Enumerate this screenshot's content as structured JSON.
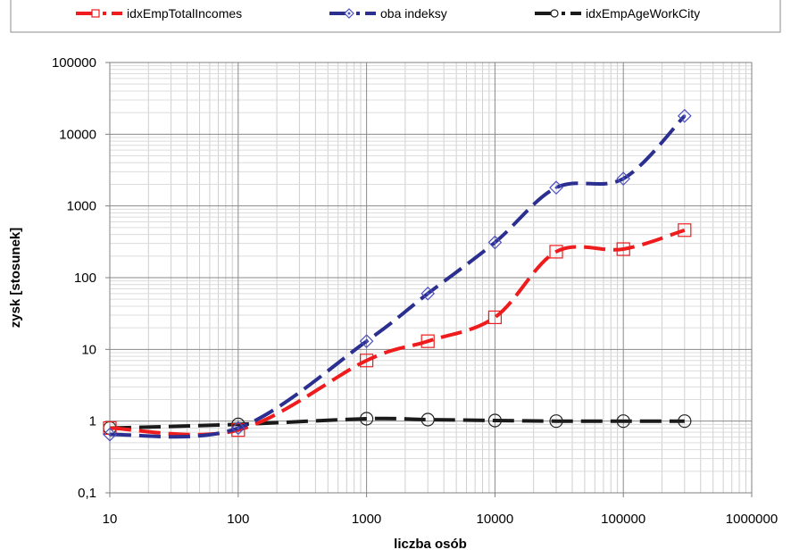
{
  "chart_data": {
    "type": "line",
    "xlabel": "liczba osób",
    "ylabel": "zysk [stosunek]",
    "x_scale": "log",
    "y_scale": "log",
    "xlim": [
      10,
      1000000
    ],
    "ylim": [
      0.1,
      100000
    ],
    "x_ticks": [
      10,
      100,
      1000,
      10000,
      100000,
      1000000
    ],
    "x_tick_labels": [
      "10",
      "100",
      "1000",
      "10000",
      "100000",
      "1000000"
    ],
    "y_ticks": [
      0.1,
      1,
      10,
      100,
      1000,
      10000,
      100000
    ],
    "y_tick_labels": [
      "0,1",
      "1",
      "10",
      "100",
      "1000",
      "10000",
      "100000"
    ],
    "grid": true,
    "legend_position": "top",
    "series": [
      {
        "name": "idxEmpTotalIncomes",
        "color": "#ee1c1c",
        "marker": "square",
        "x": [
          10,
          100,
          1000,
          3000,
          10000,
          30000,
          100000,
          300000
        ],
        "y": [
          0.8,
          0.75,
          7,
          13,
          28,
          230,
          250,
          460
        ]
      },
      {
        "name": "oba indeksy",
        "color": "#2b2f8f",
        "marker": "diamond",
        "x": [
          10,
          100,
          1000,
          3000,
          10000,
          30000,
          100000,
          300000
        ],
        "y": [
          0.65,
          0.8,
          13,
          60,
          310,
          1800,
          2400,
          18000
        ]
      },
      {
        "name": "idxEmpAgeWorkCity",
        "color": "#1a1a1a",
        "marker": "circle",
        "x": [
          10,
          100,
          1000,
          3000,
          10000,
          30000,
          100000,
          300000
        ],
        "y": [
          0.8,
          0.9,
          1.08,
          1.05,
          1.02,
          1.0,
          1.0,
          1.0
        ]
      }
    ]
  }
}
